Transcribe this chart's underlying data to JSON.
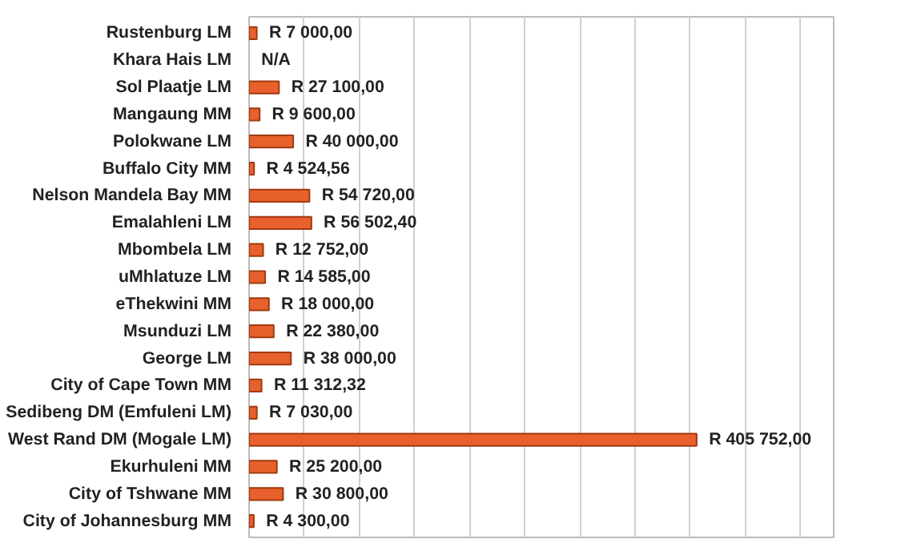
{
  "chart_data": {
    "type": "bar",
    "orientation": "horizontal",
    "categories": [
      "Rustenburg LM",
      "Khara Hais LM",
      "Sol Plaatje LM",
      "Mangaung MM",
      "Polokwane LM",
      "Buffalo City MM",
      "Nelson Mandela Bay MM",
      "Emalahleni LM",
      "Mbombela LM",
      "uMhlatuze LM",
      "eThekwini MM",
      "Msunduzi LM",
      "George LM",
      "City of Cape Town MM",
      "Sedibeng DM (Emfuleni LM)",
      "West Rand DM (Mogale LM)",
      "Ekurhuleni MM",
      "City of Tshwane MM",
      "City of Johannesburg MM"
    ],
    "values": [
      7000,
      null,
      27100,
      9600,
      40000,
      4524.56,
      54720,
      56502.4,
      12752,
      14585,
      18000,
      22380,
      38000,
      11312.32,
      7030,
      405752,
      25200,
      30800,
      4300
    ],
    "value_labels": [
      "R 7 000,00",
      "N/A",
      "R 27 100,00",
      "R 9 600,00",
      "R 40 000,00",
      "R 4 524,56",
      "R 54 720,00",
      "R 56 502,40",
      "R 12 752,00",
      "R 14 585,00",
      "R 18 000,00",
      "R 22 380,00",
      "R 38 000,00",
      "R 11 312,32",
      "R 7 030,00",
      "R 405 752,00",
      "R 25 200,00",
      "R 30 800,00",
      "R 4 300,00"
    ],
    "color": "#e8602c",
    "xlim": [
      0,
      530000
    ],
    "xticks": [
      {
        "value": 0,
        "label": null
      },
      {
        "value": 50000,
        "label": null
      },
      {
        "value": 100000,
        "label": null
      },
      {
        "value": 150000,
        "label": null
      },
      {
        "value": 200000,
        "label": null
      },
      {
        "value": 250000,
        "label": null
      },
      {
        "value": 300000,
        "label": null
      },
      {
        "value": 350000,
        "label": null
      },
      {
        "value": 400000,
        "label": null
      },
      {
        "value": 450000,
        "label": null
      },
      {
        "value": 500000,
        "label": null
      }
    ],
    "grid": "x",
    "tick_labels": "y"
  }
}
